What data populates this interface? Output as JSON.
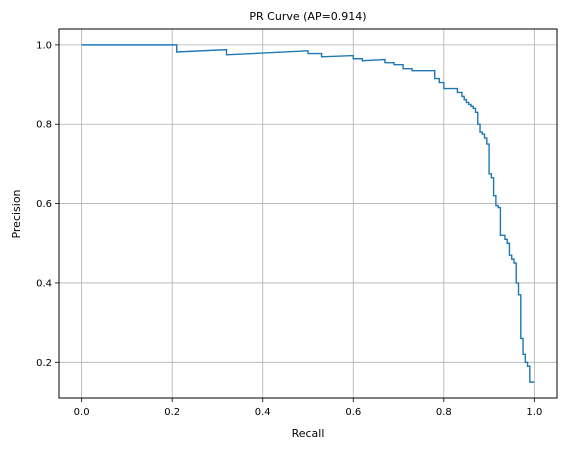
{
  "chart_data": {
    "type": "line",
    "title": "PR Curve (AP=0.914)",
    "xlabel": "Recall",
    "ylabel": "Precision",
    "xlim": [
      -0.05,
      1.05
    ],
    "ylim": [
      0.11,
      1.04
    ],
    "xticks": [
      0.0,
      0.2,
      0.4,
      0.6,
      0.8,
      1.0
    ],
    "xtick_labels": [
      "0.0",
      "0.2",
      "0.4",
      "0.6",
      "0.8",
      "1.0"
    ],
    "yticks": [
      0.2,
      0.4,
      0.6,
      0.8,
      1.0
    ],
    "ytick_labels": [
      "0.2",
      "0.4",
      "0.6",
      "0.8",
      "1.0"
    ],
    "grid": true,
    "step": true,
    "series": [
      {
        "color": "#1f77b4",
        "x": [
          0.0,
          0.21,
          0.21,
          0.32,
          0.32,
          0.5,
          0.5,
          0.53,
          0.53,
          0.6,
          0.6,
          0.62,
          0.62,
          0.67,
          0.67,
          0.69,
          0.69,
          0.71,
          0.71,
          0.73,
          0.73,
          0.78,
          0.78,
          0.79,
          0.79,
          0.8,
          0.8,
          0.83,
          0.83,
          0.84,
          0.84,
          0.845,
          0.845,
          0.85,
          0.85,
          0.855,
          0.855,
          0.86,
          0.86,
          0.865,
          0.865,
          0.87,
          0.87,
          0.875,
          0.875,
          0.88,
          0.88,
          0.885,
          0.885,
          0.89,
          0.89,
          0.895,
          0.895,
          0.9,
          0.9,
          0.905,
          0.905,
          0.91,
          0.91,
          0.915,
          0.915,
          0.92,
          0.92,
          0.925,
          0.925,
          0.935,
          0.935,
          0.94,
          0.94,
          0.945,
          0.945,
          0.95,
          0.95,
          0.955,
          0.955,
          0.96,
          0.96,
          0.965,
          0.965,
          0.97,
          0.97,
          0.975,
          0.975,
          0.98,
          0.98,
          0.985,
          0.985,
          0.99,
          0.99,
          0.995,
          0.995,
          1.0
        ],
        "y": [
          1.0,
          1.0,
          0.982,
          0.988,
          0.975,
          0.985,
          0.978,
          0.978,
          0.97,
          0.973,
          0.965,
          0.965,
          0.96,
          0.963,
          0.955,
          0.955,
          0.95,
          0.95,
          0.94,
          0.94,
          0.935,
          0.935,
          0.915,
          0.915,
          0.905,
          0.905,
          0.89,
          0.89,
          0.88,
          0.88,
          0.87,
          0.87,
          0.862,
          0.862,
          0.855,
          0.855,
          0.85,
          0.85,
          0.845,
          0.845,
          0.84,
          0.84,
          0.83,
          0.83,
          0.8,
          0.8,
          0.78,
          0.78,
          0.775,
          0.775,
          0.765,
          0.765,
          0.75,
          0.75,
          0.675,
          0.675,
          0.665,
          0.665,
          0.62,
          0.62,
          0.595,
          0.595,
          0.59,
          0.59,
          0.52,
          0.52,
          0.51,
          0.51,
          0.5,
          0.5,
          0.47,
          0.47,
          0.46,
          0.46,
          0.45,
          0.45,
          0.4,
          0.4,
          0.37,
          0.37,
          0.26,
          0.26,
          0.22,
          0.22,
          0.2,
          0.2,
          0.19,
          0.19,
          0.15,
          0.15,
          0.15,
          0.15
        ]
      }
    ]
  }
}
